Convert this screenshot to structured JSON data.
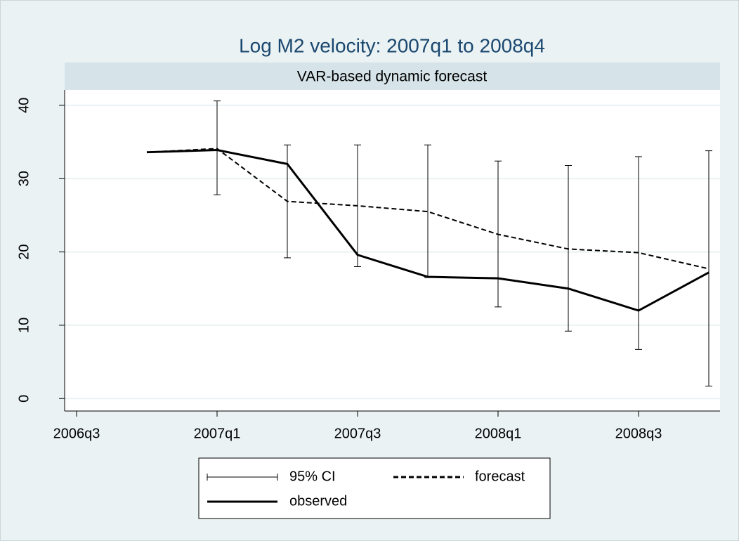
{
  "chart_data": {
    "type": "line",
    "title": "Log M2 velocity: 2007q1 to 2008q4",
    "subtitle": "VAR-based dynamic forecast",
    "x": [
      187,
      188,
      189,
      190,
      191,
      192,
      193,
      194,
      195
    ],
    "xlim": [
      185.83,
      195.16
    ],
    "xticks": [
      {
        "value": 186,
        "label": "2006q3"
      },
      {
        "value": 188,
        "label": "2007q1"
      },
      {
        "value": 190,
        "label": "2007q3"
      },
      {
        "value": 192,
        "label": "2008q1"
      },
      {
        "value": 194,
        "label": "2008q3"
      }
    ],
    "ylim": [
      -1.7,
      42.1
    ],
    "yticks": [
      0,
      10,
      20,
      30,
      40
    ],
    "grid": true,
    "ci": {
      "name": "95% CI",
      "color": "#000000",
      "lower": [
        null,
        27.8,
        19.2,
        18.0,
        16.5,
        12.5,
        9.2,
        6.7,
        1.7
      ],
      "upper": [
        null,
        40.6,
        34.6,
        34.6,
        34.6,
        32.4,
        31.8,
        33.0,
        33.8
      ]
    },
    "series": [
      {
        "name": "forecast",
        "color": "#000000",
        "dash": "dashed",
        "values": [
          33.6,
          34.1,
          26.9,
          26.3,
          25.5,
          22.4,
          20.4,
          19.9,
          17.7
        ]
      },
      {
        "name": "observed",
        "color": "#000000",
        "dash": "solid",
        "values": [
          33.6,
          33.9,
          32.0,
          19.6,
          16.6,
          16.4,
          15.0,
          12.0,
          17.2
        ]
      }
    ]
  }
}
